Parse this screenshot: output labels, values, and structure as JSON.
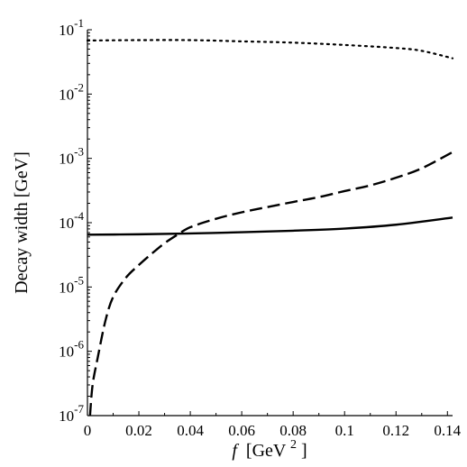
{
  "chart_data": {
    "type": "line",
    "title": "",
    "ylabel": "Decay width [GeV]",
    "xlabel": {
      "symbol": "f",
      "unit": "[GeV",
      "exponent": "2",
      "close": "]"
    },
    "xlim": [
      0,
      0.142
    ],
    "ylim": [
      1e-07,
      0.1
    ],
    "y_scale": "log",
    "grid": false,
    "x_ticks": [
      {
        "value": 0,
        "label": "0"
      },
      {
        "value": 0.02,
        "label": "0.02"
      },
      {
        "value": 0.04,
        "label": "0.04"
      },
      {
        "value": 0.06,
        "label": "0.06"
      },
      {
        "value": 0.08,
        "label": "0.08"
      },
      {
        "value": 0.1,
        "label": "0.1"
      },
      {
        "value": 0.12,
        "label": "0.12"
      },
      {
        "value": 0.14,
        "label": "0.14"
      }
    ],
    "y_ticks": [
      {
        "value": 1e-07,
        "base": "10",
        "exp": "-7"
      },
      {
        "value": 1e-06,
        "base": "10",
        "exp": "-6"
      },
      {
        "value": 1e-05,
        "base": "10",
        "exp": "-5"
      },
      {
        "value": 0.0001,
        "base": "10",
        "exp": "-4"
      },
      {
        "value": 0.001,
        "base": "10",
        "exp": "-3"
      },
      {
        "value": 0.01,
        "base": "10",
        "exp": "-2"
      },
      {
        "value": 0.1,
        "base": "10",
        "exp": "-1"
      }
    ],
    "series": [
      {
        "style": "solid",
        "x": [
          0,
          0.02,
          0.04,
          0.06,
          0.08,
          0.1,
          0.12,
          0.142
        ],
        "y": [
          6.5e-05,
          6.6e-05,
          6.8e-05,
          7.1e-05,
          7.5e-05,
          8.1e-05,
          9.3e-05,
          0.00012
        ]
      },
      {
        "style": "dashed",
        "x": [
          0.001,
          0.002,
          0.004,
          0.007,
          0.01,
          0.015,
          0.02,
          0.025,
          0.03,
          0.035,
          0.04,
          0.05,
          0.06,
          0.07,
          0.08,
          0.09,
          0.1,
          0.11,
          0.12,
          0.13,
          0.142
        ],
        "y": [
          1e-07,
          3e-07,
          8e-07,
          3e-06,
          7e-06,
          1.4e-05,
          2.2e-05,
          3.3e-05,
          4.8e-05,
          6.5e-05,
          8.5e-05,
          0.000115,
          0.000145,
          0.000175,
          0.00021,
          0.00025,
          0.00031,
          0.00038,
          0.0005,
          0.0007,
          0.00125
        ]
      },
      {
        "style": "dotted",
        "x": [
          0,
          0.02,
          0.04,
          0.06,
          0.08,
          0.1,
          0.12,
          0.13,
          0.142
        ],
        "y": [
          0.068,
          0.069,
          0.069,
          0.066,
          0.063,
          0.058,
          0.052,
          0.047,
          0.036
        ]
      }
    ]
  }
}
